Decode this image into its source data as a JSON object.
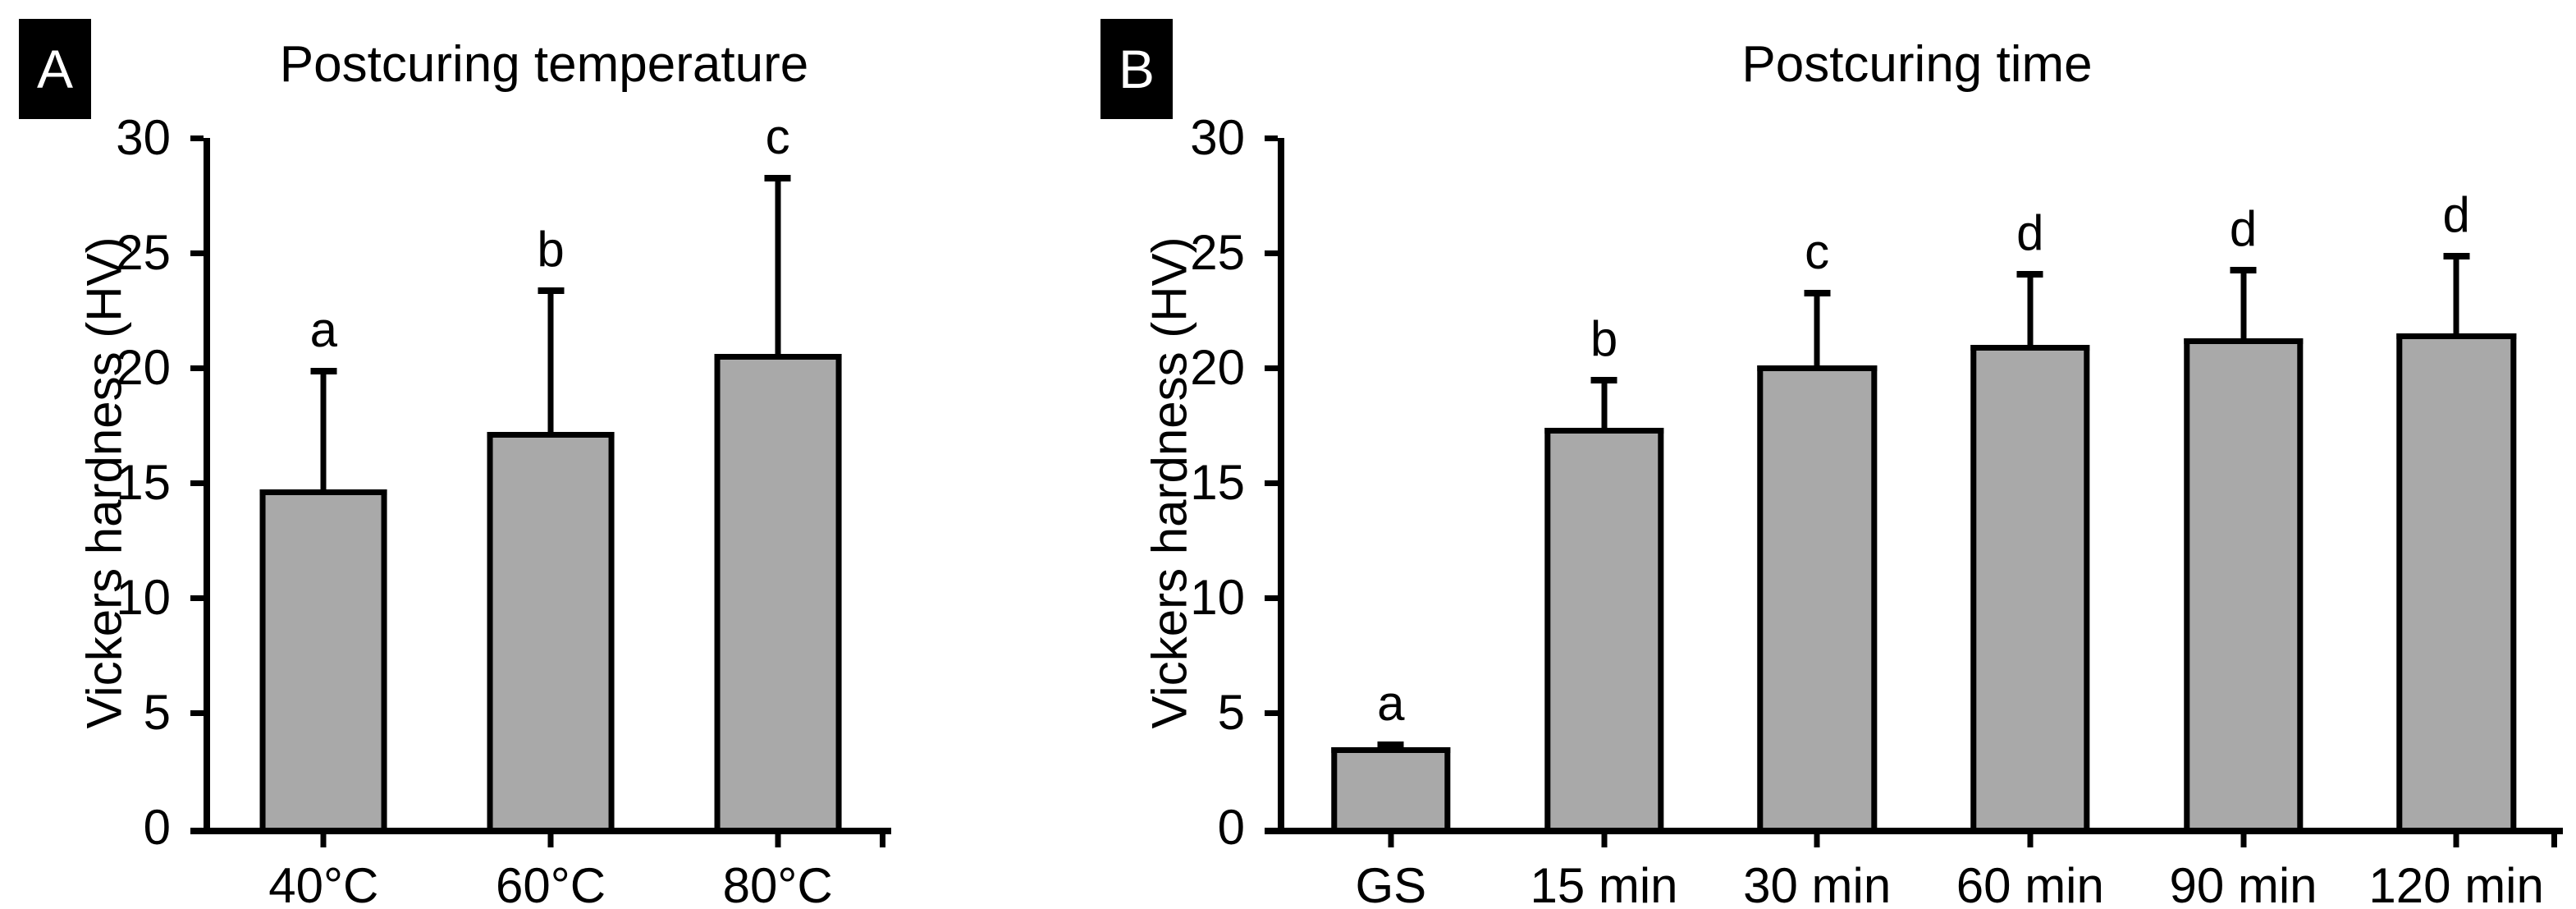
{
  "figure": {
    "background": "#ffffff",
    "bar_fill": "#a9a9a9",
    "bar_stroke": "#000000",
    "axis_color": "#000000",
    "text_color": "#000000"
  },
  "chart_data": [
    {
      "type": "bar",
      "panel_label": "A",
      "title": "Postcuring temperature",
      "ylabel": "Vickers hardness (HV)",
      "xlabel": "",
      "ylim": [
        0,
        30
      ],
      "yticks": [
        0,
        5,
        10,
        15,
        20,
        25,
        30
      ],
      "grid": false,
      "legend": "none",
      "categories": [
        "40°C",
        "60°C",
        "80°C"
      ],
      "values": [
        14.7,
        17.2,
        20.6
      ],
      "errors_upper": [
        5.3,
        6.3,
        7.8
      ],
      "sig_letters": [
        "a",
        "b",
        "c"
      ]
    },
    {
      "type": "bar",
      "panel_label": "B",
      "title": "Postcuring time",
      "ylabel": "Vickers hardness (HV)",
      "xlabel": "",
      "ylim": [
        0,
        30
      ],
      "yticks": [
        0,
        5,
        10,
        15,
        20,
        25,
        30
      ],
      "grid": false,
      "legend": "none",
      "categories": [
        "GS",
        "15 min",
        "30 min",
        "60 min",
        "90 min",
        "120 min"
      ],
      "values": [
        3.5,
        17.4,
        20.1,
        21.0,
        21.3,
        21.5
      ],
      "errors_upper": [
        0.25,
        2.2,
        3.3,
        3.2,
        3.1,
        3.5
      ],
      "sig_letters": [
        "a",
        "b",
        "c",
        "d",
        "d",
        "d"
      ]
    }
  ]
}
